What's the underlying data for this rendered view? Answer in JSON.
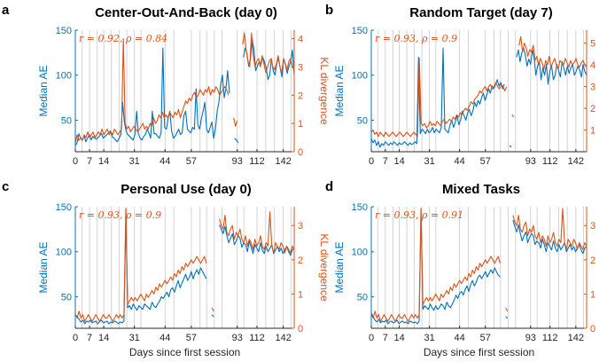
{
  "colors": {
    "ae": "#0072BD",
    "kl": "#D95319",
    "axis": "#262626",
    "vline": "#c8c8c8"
  },
  "shared": {
    "xlabel": "Days since first session",
    "ylabel_left": "Median AE",
    "ylabel_right": "KL divergence",
    "xticks": [
      "0",
      "7",
      "14",
      "31",
      "44",
      "57",
      "93",
      "112",
      "142"
    ]
  },
  "chart_data": [
    {
      "type": "line",
      "panel_label": "a",
      "title": "Center-Out-And-Back (day 0)",
      "corr_text": "r = 0.92, ρ = 0.84",
      "ylim_left": [
        15,
        150
      ],
      "yticks_left": [
        50,
        100,
        150
      ],
      "ylim_right": [
        0,
        4.3
      ],
      "yticks_right": [
        0,
        1,
        2,
        3,
        4
      ],
      "series": [
        {
          "name": "Median AE",
          "axis": "left",
          "values": [
            22,
            25,
            35,
            30,
            28,
            33,
            26,
            30,
            34,
            28,
            32,
            30,
            29,
            31,
            33,
            35,
            30,
            32,
            34,
            36,
            38,
            32,
            30,
            28,
            26,
            30,
            34,
            70,
            48,
            38,
            34,
            32,
            30,
            28,
            34,
            60,
            35,
            30,
            28,
            32,
            34,
            40,
            36,
            30,
            60,
            35,
            35,
            32,
            30,
            36,
            130,
            42,
            40,
            52,
            60,
            38,
            30,
            32,
            36,
            40,
            34,
            36,
            55,
            60,
            40,
            38,
            36,
            42,
            40,
            85,
            45,
            40,
            52,
            60,
            70,
            40,
            36,
            42,
            48,
            30,
            40,
            60,
            70,
            90,
            100,
            75,
            85,
            105,
            80,
            null,
            null,
            30,
            28,
            25,
            null,
            null,
            120,
            130,
            125,
            110,
            118,
            140,
            128,
            105,
            110,
            115,
            112,
            120,
            115,
            108,
            95,
            100,
            118,
            105,
            100,
            112,
            120,
            108,
            98,
            118,
            112,
            102,
            110,
            115,
            128,
            100
          ]
        },
        {
          "name": "KL divergence",
          "axis": "right",
          "values": [
            0.3,
            0.6,
            0.4,
            0.5,
            0.4,
            0.6,
            0.5,
            0.7,
            0.5,
            0.6,
            0.7,
            0.5,
            0.6,
            0.7,
            0.6,
            0.8,
            0.6,
            0.7,
            0.8,
            0.6,
            0.7,
            0.6,
            0.8,
            0.7,
            0.6,
            0.7,
            0.8,
            4.0,
            1.0,
            0.8,
            0.9,
            0.7,
            0.8,
            0.9,
            0.8,
            0.7,
            0.8,
            0.9,
            1.0,
            0.8,
            0.9,
            0.8,
            1.0,
            0.9,
            1.2,
            1.0,
            1.1,
            1.3,
            1.2,
            1.4,
            1.2,
            1.3,
            1.2,
            1.4,
            1.3,
            1.2,
            1.4,
            1.3,
            1.5,
            1.2,
            1.4,
            1.6,
            1.8,
            1.7,
            1.9,
            1.8,
            2.0,
            2.1,
            1.9,
            2.0,
            2.2,
            2.1,
            2.0,
            2.2,
            2.1,
            2.3,
            2.0,
            2.2,
            2.1,
            2.3,
            2.2,
            2.0,
            2.1,
            2.2,
            2.3,
            2.2,
            2.0,
            null,
            null,
            1.2,
            0.9,
            1.1,
            null,
            null,
            3.8,
            4.2,
            3.6,
            3.2,
            3.0,
            4.2,
            3.4,
            3.0,
            3.2,
            3.3,
            3.0,
            3.4,
            3.1,
            2.8,
            3.0,
            3.2,
            3.3,
            3.0,
            2.9,
            3.1,
            3.4,
            3.0,
            2.8,
            3.3,
            3.1,
            2.9,
            3.2,
            3.3,
            3.0,
            2.9
          ]
        }
      ]
    },
    {
      "type": "line",
      "panel_label": "b",
      "title": "Random Target (day 7)",
      "corr_text": "r = 0.93, ρ = 0.9",
      "ylim_left": [
        15,
        150
      ],
      "yticks_left": [
        50,
        100,
        150
      ],
      "ylim_right": [
        0,
        5.6
      ],
      "yticks_right": [
        1,
        2,
        3,
        4,
        5
      ],
      "series": [
        {
          "name": "Median AE",
          "axis": "left",
          "values": [
            30,
            25,
            28,
            22,
            26,
            20,
            24,
            22,
            26,
            24,
            22,
            25,
            23,
            26,
            24,
            22,
            25,
            23,
            24,
            26,
            24,
            22,
            25,
            23,
            24,
            26,
            24,
            120,
            35,
            40,
            38,
            35,
            40,
            36,
            38,
            42,
            36,
            40,
            38,
            36,
            42,
            130,
            40,
            38,
            36,
            45,
            50,
            42,
            48,
            55,
            45,
            50,
            60,
            55,
            50,
            58,
            62,
            55,
            60,
            70,
            65,
            72,
            68,
            75,
            80,
            72,
            78,
            85,
            80,
            88,
            85,
            90,
            95,
            88,
            92,
            85,
            90,
            null,
            null,
            22,
            20,
            null,
            null,
            120,
            128,
            115,
            125,
            130,
            122,
            110,
            118,
            112,
            128,
            120,
            100,
            110,
            115,
            95,
            108,
            100,
            112,
            90,
            105,
            110,
            95,
            100,
            112,
            105,
            98,
            115,
            108,
            100,
            110,
            102,
            108,
            112,
            100,
            104,
            110,
            106,
            98,
            112,
            104,
            100
          ]
        },
        {
          "name": "KL divergence",
          "axis": "right",
          "values": [
            0.9,
            1.0,
            0.8,
            0.9,
            0.7,
            0.9,
            0.8,
            0.7,
            0.9,
            0.8,
            0.7,
            0.8,
            0.9,
            0.8,
            0.7,
            0.8,
            0.9,
            0.8,
            0.7,
            0.8,
            0.9,
            0.8,
            0.7,
            0.8,
            0.9,
            0.8,
            0.7,
            4.3,
            1.3,
            1.2,
            1.3,
            1.1,
            1.2,
            1.4,
            1.2,
            1.3,
            1.2,
            1.4,
            1.3,
            1.2,
            1.4,
            1.5,
            1.3,
            1.4,
            1.5,
            1.4,
            1.6,
            1.5,
            1.7,
            1.6,
            1.8,
            1.7,
            1.9,
            2.0,
            1.9,
            2.1,
            2.3,
            2.2,
            2.4,
            2.5,
            2.6,
            2.8,
            2.7,
            2.9,
            3.0,
            2.8,
            3.0,
            3.1,
            2.9,
            3.0,
            3.2,
            3.0,
            2.9,
            3.1,
            3.0,
            2.8,
            3.0,
            null,
            null,
            1.7,
            1.6,
            null,
            null,
            4.9,
            5.3,
            4.6,
            5.0,
            4.8,
            4.4,
            4.7,
            4.6,
            4.9,
            4.2,
            4.4,
            4.0,
            4.3,
            4.1,
            3.8,
            4.2,
            4.0,
            4.4,
            3.9,
            4.1,
            4.3,
            4.0,
            3.8,
            4.2,
            4.1,
            4.0,
            4.3,
            4.1,
            3.9,
            4.2,
            4.0,
            4.1,
            4.3,
            4.0,
            3.9,
            4.1,
            4.2,
            4.0,
            3.9
          ]
        }
      ]
    },
    {
      "type": "line",
      "panel_label": "c",
      "title": "Personal Use (day 0)",
      "corr_text": "r = 0.93, ρ = 0.9",
      "ylim_left": [
        15,
        150
      ],
      "yticks_left": [
        50,
        100,
        150
      ],
      "ylim_right": [
        0,
        3.55
      ],
      "yticks_right": [
        0,
        1,
        2,
        3
      ],
      "series": [
        {
          "name": "Median AE",
          "axis": "left",
          "values": [
            30,
            28,
            25,
            22,
            24,
            20,
            23,
            22,
            24,
            21,
            22,
            23,
            20,
            22,
            24,
            21,
            22,
            23,
            20,
            22,
            21,
            23,
            22,
            20,
            22,
            21,
            23,
            140,
            38,
            40,
            36,
            42,
            38,
            35,
            40,
            38,
            36,
            42,
            40,
            38,
            36,
            44,
            40,
            38,
            42,
            45,
            50,
            48,
            52,
            55,
            50,
            58,
            60,
            55,
            62,
            68,
            60,
            65,
            70,
            75,
            68,
            72,
            78,
            70,
            76,
            80,
            75,
            82,
            78,
            74,
            70,
            null,
            null,
            30,
            28,
            null,
            null,
            130,
            125,
            120,
            128,
            118,
            110,
            115,
            120,
            108,
            112,
            118,
            115,
            105,
            110,
            108,
            100,
            112,
            105,
            98,
            108,
            104,
            100,
            110,
            102,
            98,
            106,
            100,
            104,
            108,
            98,
            102,
            106,
            100,
            104,
            98,
            102,
            106,
            100,
            96,
            102,
            104
          ]
        },
        {
          "name": "KL divergence",
          "axis": "right",
          "values": [
            0.4,
            0.3,
            0.5,
            0.3,
            0.4,
            0.2,
            0.3,
            0.4,
            0.3,
            0.2,
            0.3,
            0.4,
            0.3,
            0.2,
            0.3,
            0.4,
            0.3,
            0.3,
            0.4,
            0.3,
            0.2,
            0.3,
            0.4,
            0.3,
            0.4,
            0.3,
            0.4,
            3.5,
            0.7,
            0.8,
            0.9,
            0.8,
            0.9,
            0.8,
            0.9,
            1.0,
            0.9,
            0.8,
            1.0,
            0.9,
            1.0,
            1.1,
            1.0,
            1.2,
            1.1,
            1.3,
            1.2,
            1.3,
            1.4,
            1.3,
            1.4,
            1.5,
            1.4,
            1.6,
            1.5,
            1.7,
            1.6,
            1.8,
            1.7,
            1.9,
            1.8,
            1.9,
            2.0,
            1.9,
            2.0,
            2.1,
            2.0,
            1.9,
            2.0,
            2.1,
            1.9,
            null,
            null,
            0.6,
            0.5,
            null,
            null,
            3.2,
            3.0,
            2.9,
            3.3,
            2.8,
            2.7,
            2.9,
            3.0,
            2.6,
            2.8,
            2.7,
            2.9,
            2.6,
            2.5,
            2.7,
            2.4,
            2.6,
            2.5,
            2.3,
            2.6,
            2.4,
            2.5,
            2.7,
            2.4,
            2.3,
            2.5,
            2.4,
            3.4,
            2.4,
            2.2,
            2.5,
            2.4,
            2.3,
            2.5,
            2.4,
            2.2,
            2.4,
            2.3,
            2.2,
            2.4,
            2.3
          ]
        }
      ]
    },
    {
      "type": "line",
      "panel_label": "d",
      "title": "Mixed Tasks",
      "corr_text": "r = 0.93, ρ = 0.91",
      "ylim_left": [
        15,
        150
      ],
      "yticks_left": [
        50,
        100,
        150
      ],
      "ylim_right": [
        0,
        3.55
      ],
      "yticks_right": [
        0,
        1,
        2,
        3
      ],
      "series": [
        {
          "name": "Median AE",
          "axis": "left",
          "values": [
            32,
            28,
            24,
            22,
            25,
            21,
            23,
            22,
            24,
            20,
            22,
            23,
            21,
            22,
            24,
            20,
            22,
            23,
            21,
            22,
            20,
            23,
            22,
            21,
            22,
            20,
            23,
            145,
            36,
            40,
            38,
            36,
            42,
            38,
            35,
            40,
            36,
            38,
            42,
            40,
            36,
            44,
            40,
            38,
            42,
            46,
            52,
            48,
            54,
            56,
            52,
            58,
            62,
            56,
            64,
            68,
            62,
            66,
            72,
            74,
            70,
            74,
            78,
            72,
            76,
            80,
            76,
            82,
            78,
            74,
            72,
            null,
            null,
            28,
            26,
            null,
            null,
            135,
            128,
            122,
            130,
            120,
            112,
            118,
            122,
            110,
            116,
            120,
            118,
            108,
            112,
            110,
            104,
            114,
            108,
            100,
            110,
            106,
            102,
            112,
            104,
            100,
            108,
            102,
            106,
            110,
            100,
            104,
            108,
            102,
            106,
            100,
            104,
            108,
            102,
            98,
            104,
            106
          ]
        },
        {
          "name": "KL divergence",
          "axis": "right",
          "values": [
            0.4,
            0.3,
            0.5,
            0.3,
            0.4,
            0.2,
            0.3,
            0.4,
            0.3,
            0.2,
            0.3,
            0.4,
            0.3,
            0.2,
            0.3,
            0.4,
            0.3,
            0.3,
            0.4,
            0.3,
            0.2,
            0.3,
            0.4,
            0.3,
            0.4,
            0.3,
            0.4,
            3.5,
            0.7,
            0.8,
            0.9,
            0.8,
            0.9,
            0.8,
            0.9,
            1.0,
            0.9,
            0.8,
            1.0,
            0.9,
            1.0,
            1.1,
            1.0,
            1.2,
            1.1,
            1.3,
            1.2,
            1.3,
            1.4,
            1.3,
            1.4,
            1.5,
            1.4,
            1.6,
            1.5,
            1.7,
            1.6,
            1.8,
            1.7,
            1.9,
            1.8,
            1.9,
            2.0,
            1.9,
            2.0,
            2.1,
            2.0,
            1.9,
            2.0,
            2.1,
            1.9,
            null,
            null,
            0.6,
            0.5,
            null,
            null,
            3.3,
            3.1,
            3.0,
            3.3,
            2.9,
            2.8,
            3.0,
            3.1,
            2.7,
            2.9,
            2.8,
            3.0,
            2.7,
            2.6,
            2.8,
            2.5,
            2.7,
            2.6,
            2.4,
            2.7,
            2.5,
            2.6,
            2.8,
            2.5,
            2.4,
            2.6,
            2.5,
            3.5,
            2.5,
            2.3,
            2.6,
            2.5,
            2.4,
            2.6,
            2.5,
            2.3,
            2.5,
            2.4,
            2.3,
            2.5,
            2.4
          ]
        }
      ]
    }
  ]
}
